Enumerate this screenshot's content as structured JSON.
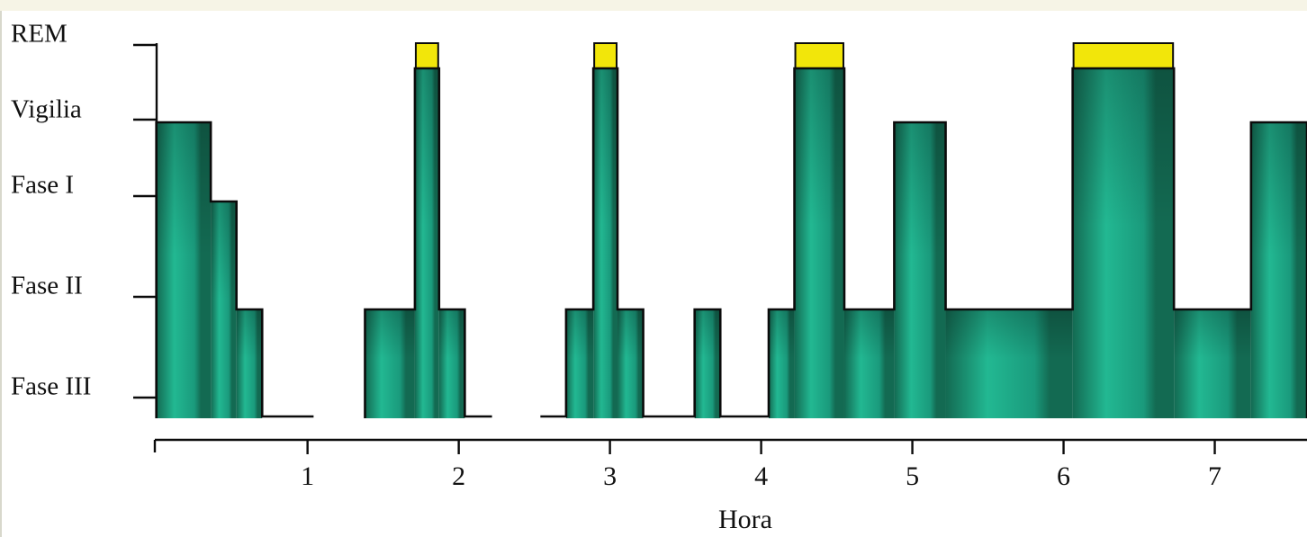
{
  "chart_data": {
    "type": "area",
    "title": "",
    "xlabel": "Hora",
    "ylabel": "",
    "xlim": [
      -0.01,
      7.61
    ],
    "x_ticks": [
      "1",
      "2",
      "3",
      "4",
      "5",
      "6",
      "7"
    ],
    "y_levels": [
      {
        "key": "rem",
        "label": "REM"
      },
      {
        "key": "vigilia",
        "label": "Vigilia"
      },
      {
        "key": "fase1",
        "label": "Fase I"
      },
      {
        "key": "fase2",
        "label": "Fase II"
      },
      {
        "key": "fase3",
        "label": "Fase III"
      }
    ],
    "hypnogram": [
      {
        "start": 0.0,
        "end": 0.36,
        "stage": "vigilia"
      },
      {
        "start": 0.36,
        "end": 0.53,
        "stage": "fase1"
      },
      {
        "start": 0.53,
        "end": 0.7,
        "stage": "fase2"
      },
      {
        "start": 0.7,
        "end": 1.04,
        "stage": "deep"
      },
      {
        "start": 1.04,
        "end": 1.38,
        "stage": "gap"
      },
      {
        "start": 1.38,
        "end": 1.71,
        "stage": "fase2"
      },
      {
        "start": 1.71,
        "end": 1.87,
        "stage": "rem"
      },
      {
        "start": 1.87,
        "end": 2.04,
        "stage": "fase2"
      },
      {
        "start": 2.04,
        "end": 2.22,
        "stage": "deep"
      },
      {
        "start": 2.22,
        "end": 2.54,
        "stage": "gap"
      },
      {
        "start": 2.54,
        "end": 2.71,
        "stage": "deep"
      },
      {
        "start": 2.71,
        "end": 2.89,
        "stage": "fase2"
      },
      {
        "start": 2.89,
        "end": 3.05,
        "stage": "rem"
      },
      {
        "start": 3.05,
        "end": 3.22,
        "stage": "fase2"
      },
      {
        "start": 3.22,
        "end": 3.56,
        "stage": "deep"
      },
      {
        "start": 3.56,
        "end": 3.73,
        "stage": "fase2"
      },
      {
        "start": 3.73,
        "end": 4.05,
        "stage": "deep"
      },
      {
        "start": 4.05,
        "end": 4.22,
        "stage": "fase2"
      },
      {
        "start": 4.22,
        "end": 4.55,
        "stage": "rem"
      },
      {
        "start": 4.55,
        "end": 4.88,
        "stage": "fase2"
      },
      {
        "start": 4.88,
        "end": 5.22,
        "stage": "vigilia"
      },
      {
        "start": 5.22,
        "end": 6.06,
        "stage": "fase2"
      },
      {
        "start": 6.06,
        "end": 6.73,
        "stage": "rem"
      },
      {
        "start": 6.73,
        "end": 7.24,
        "stage": "fase2"
      },
      {
        "start": 7.24,
        "end": 7.61,
        "stage": "vigilia"
      }
    ],
    "grid": false,
    "legend": "none"
  },
  "colors": {
    "fill_dark": "#136a52",
    "fill_mid": "#1a9a7c",
    "fill_light": "#22b892",
    "rem_bar": "#f2e60a",
    "outline": "#0b0b0b",
    "band": "#f6f4e6"
  }
}
